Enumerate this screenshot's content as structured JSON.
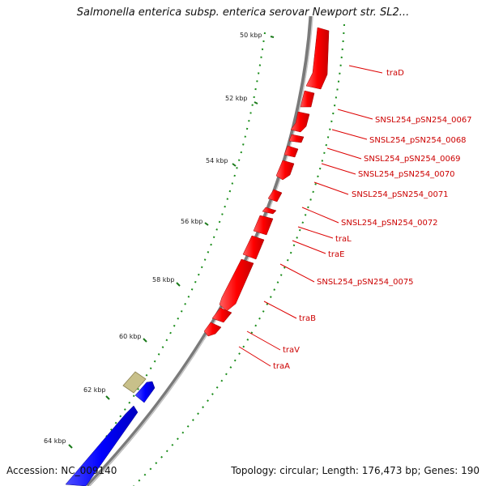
{
  "title": "Salmonella enterica subsp. enterica serovar Newport str. SL2...",
  "footer": {
    "accession_label": "Accession:",
    "accession": "NC_009140",
    "topology_text": "Topology: circular; Length: 176,473 bp; Genes: 190"
  },
  "scale": {
    "unit": "kbp",
    "ticks": [
      "50 kbp",
      "52 kbp",
      "54 kbp",
      "56 kbp",
      "58 kbp",
      "60 kbp",
      "62 kbp",
      "64 kbp"
    ]
  },
  "gene_labels": [
    "traD",
    "SNSL254_pSN254_0067",
    "SNSL254_pSN254_0068",
    "SNSL254_pSN254_0069",
    "SNSL254_pSN254_0070",
    "SNSL254_pSN254_0071",
    "SNSL254_pSN254_0072",
    "traL",
    "traE",
    "SNSL254_pSN254_0075",
    "traB",
    "traV",
    "traA"
  ],
  "colors": {
    "reverse_strand_genes": "#ff0000",
    "forward_strand_genes": "#0000ff",
    "other_feature": "#c8c08a",
    "backbone": "#888888",
    "gc_ticks": "#1a8c1a",
    "label_lines": "#dd0000"
  }
}
